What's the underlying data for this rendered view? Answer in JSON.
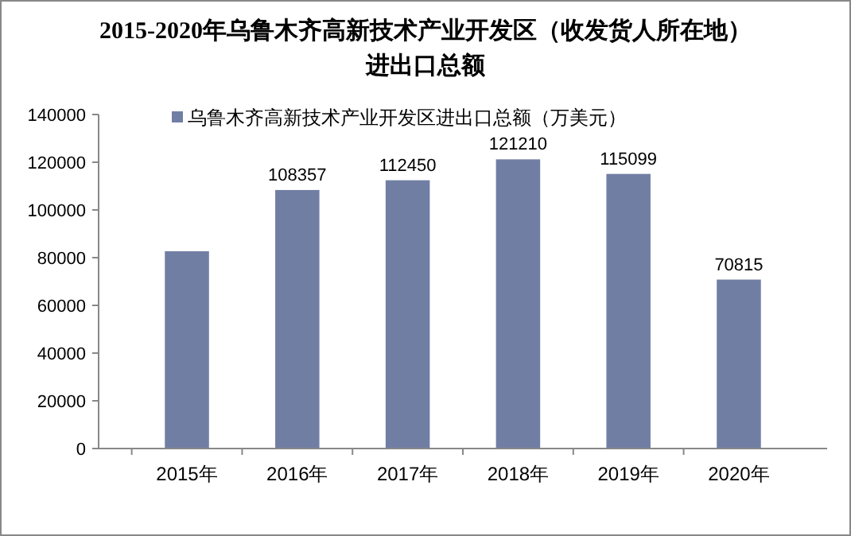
{
  "chart_data": {
    "type": "bar",
    "title": "2015-2020年乌鲁木齐高新技术产业开发区（收发货人所在地）进出口总额",
    "categories": [
      "2015年",
      "2016年",
      "2017年",
      "2018年",
      "2019年",
      "2020年"
    ],
    "series": [
      {
        "name": "乌鲁木齐高新技术产业开发区进出口总额（万美元）",
        "color": "#717ea4",
        "values": [
          82700,
          108357,
          112450,
          121210,
          115099,
          70815
        ]
      }
    ],
    "value_labels": [
      null,
      "108357",
      "112450",
      "121210",
      "115099",
      "70815"
    ],
    "ylim": [
      0,
      140000
    ],
    "yticks": [
      0,
      20000,
      40000,
      60000,
      80000,
      100000,
      120000,
      140000
    ],
    "grid": false,
    "legend": "top"
  }
}
